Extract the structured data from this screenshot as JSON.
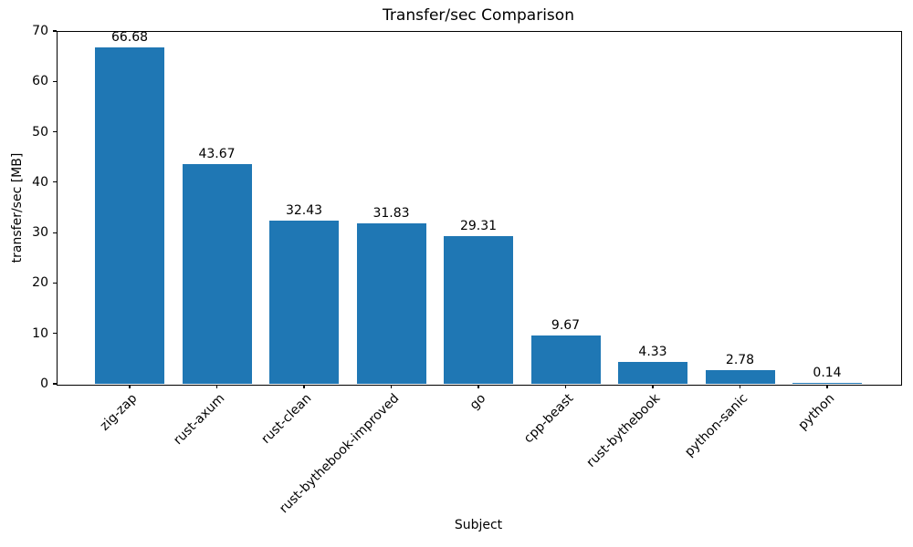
{
  "chart_data": {
    "type": "bar",
    "title": "Transfer/sec Comparison",
    "xlabel": "Subject",
    "ylabel": "transfer/sec [MB]",
    "categories": [
      "zig-zap",
      "rust-axum",
      "rust-clean",
      "rust-bythebook-improved",
      "go",
      "cpp-beast",
      "rust-bythebook",
      "python-sanic",
      "python"
    ],
    "values": [
      66.68,
      43.67,
      32.43,
      31.83,
      29.31,
      9.67,
      4.33,
      2.78,
      0.14
    ],
    "value_labels": [
      "66.68",
      "43.67",
      "32.43",
      "31.83",
      "29.31",
      "9.67",
      "4.33",
      "2.78",
      "0.14"
    ],
    "ylim": [
      0,
      70
    ],
    "yticks": [
      0,
      10,
      20,
      30,
      40,
      50,
      60,
      70
    ],
    "grid": "off",
    "legend": "none",
    "bar_color": "#1f77b4",
    "axis_color": "#000000"
  }
}
